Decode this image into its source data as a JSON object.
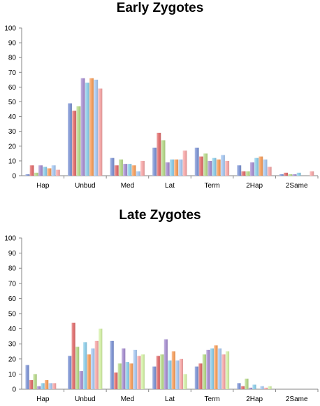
{
  "chart_data": [
    {
      "type": "bar",
      "title": "Early Zygotes",
      "xlabel": "",
      "ylabel": "",
      "ylim": [
        0,
        100
      ],
      "yticks": [
        0,
        10,
        20,
        30,
        40,
        50,
        60,
        70,
        80,
        90,
        100
      ],
      "categories": [
        "Hap",
        "Unbud",
        "Med",
        "Lat",
        "Term",
        "2Hap",
        "2Same"
      ],
      "grid": false,
      "legend": "none",
      "series": [
        {
          "color": "#8096D4",
          "values": [
            1,
            49,
            12,
            19,
            19,
            7,
            1
          ]
        },
        {
          "color": "#E07070",
          "values": [
            7,
            44,
            7,
            29,
            13,
            3,
            2
          ]
        },
        {
          "color": "#B8D98C",
          "values": [
            2,
            47,
            11,
            24,
            15,
            3,
            1
          ]
        },
        {
          "color": "#A890D0",
          "values": [
            7,
            66,
            8,
            9,
            10,
            9,
            1
          ]
        },
        {
          "color": "#8ECDE8",
          "values": [
            6,
            63,
            8,
            11,
            12,
            12,
            2
          ]
        },
        {
          "color": "#F5A060",
          "values": [
            5,
            66,
            7,
            11,
            11,
            13,
            0
          ]
        },
        {
          "color": "#A8C8F0",
          "values": [
            7,
            65,
            3,
            11,
            14,
            11,
            0
          ]
        },
        {
          "color": "#F5A8A8",
          "values": [
            4,
            59,
            10,
            17,
            10,
            6,
            3
          ]
        }
      ]
    },
    {
      "type": "bar",
      "title": "Late Zygotes",
      "xlabel": "",
      "ylabel": "",
      "ylim": [
        0,
        100
      ],
      "yticks": [
        0,
        10,
        20,
        30,
        40,
        50,
        60,
        70,
        80,
        90,
        100
      ],
      "categories": [
        "Hap",
        "Unbud",
        "Med",
        "Lat",
        "Term",
        "2Hap",
        "2Same"
      ],
      "grid": false,
      "legend": "none",
      "series": [
        {
          "color": "#8096D4",
          "values": [
            16,
            22,
            32,
            15,
            15,
            4,
            0
          ]
        },
        {
          "color": "#E07070",
          "values": [
            6,
            44,
            11,
            22,
            17,
            2,
            0
          ]
        },
        {
          "color": "#B8D98C",
          "values": [
            10,
            28,
            17,
            23,
            23,
            7,
            0
          ]
        },
        {
          "color": "#A890D0",
          "values": [
            2,
            12,
            27,
            33,
            26,
            1,
            0
          ]
        },
        {
          "color": "#8ECDE8",
          "values": [
            4,
            31,
            18,
            19,
            27,
            3,
            0
          ]
        },
        {
          "color": "#F5A060",
          "values": [
            6,
            23,
            17,
            25,
            29,
            0,
            0
          ]
        },
        {
          "color": "#A8C8F0",
          "values": [
            4,
            27,
            26,
            19,
            27,
            2,
            0
          ]
        },
        {
          "color": "#F5A8A8",
          "values": [
            4,
            32,
            22,
            20,
            23,
            1,
            0
          ]
        },
        {
          "color": "#D4F0A8",
          "values": [
            0,
            40,
            23,
            10,
            25,
            2,
            0
          ]
        }
      ]
    }
  ]
}
